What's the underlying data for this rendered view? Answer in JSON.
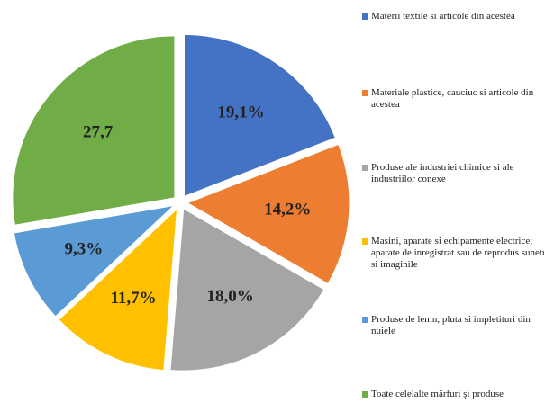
{
  "chart_data": {
    "type": "pie",
    "categories": [
      "Materii textile si articole din acestea",
      "Materiale plastice, cauciuc si articole din acestea",
      "Produse ale industriei chimice si ale industriilor conexe",
      "Masini, aparate si echipamente electrice; aparate de inregistrat sau de reprodus sunetul si imaginile",
      "Produse de lemn, pluta si impletituri din nuiele",
      "Toate celelalte mărfuri şi produse"
    ],
    "values": [
      19.1,
      14.2,
      18.0,
      11.7,
      9.3,
      27.7
    ],
    "value_labels": [
      "19,1%",
      "14,2%",
      "18,0%",
      "11,7%",
      "9,3%",
      "27,7"
    ],
    "colors": [
      "#4472c4",
      "#ed7d31",
      "#a5a5a5",
      "#ffc000",
      "#5b9bd5",
      "#70ad47"
    ],
    "legend": "right"
  }
}
